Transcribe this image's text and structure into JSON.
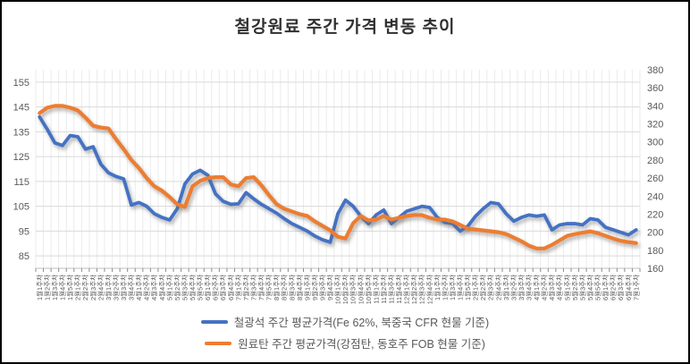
{
  "title": "철강원료 주간 가격 변동 추이",
  "legend": {
    "series1_label": "철광석 주간 평균가격(Fe 62%, 북중국 CFR 현물 기준)",
    "series2_label": "원료탄 주간 평균가격(강점탄, 동호주 FOB 현물 기준)"
  },
  "colors": {
    "iron_ore": "#4472C4",
    "coking_coal": "#ED7D31",
    "grid_major": "#D9D9D9",
    "grid_minor": "#EBEBEB",
    "axis_line": "#BFBFBF",
    "tick": "#8C8C8C",
    "label": "#595959"
  },
  "chart_data": {
    "type": "line",
    "title": "철강원료 주간 가격 변동 추이",
    "grid": true,
    "legend_position": "bottom",
    "categories": [
      "1월1주차",
      "1월2주차",
      "1월3주차",
      "1월4주차",
      "1월5주차",
      "2월1주차",
      "2월2주차",
      "2월3주차",
      "2월4주차",
      "3월1주차",
      "3월2주차",
      "3월3주차",
      "3월4주차",
      "4월1주차",
      "4월2주차",
      "4월3주차",
      "4월4주차",
      "5월1주차",
      "5월2주차",
      "5월3주차",
      "5월4주차",
      "5월5주차",
      "6월1주차",
      "6월2주차",
      "6월3주차",
      "6월4주차",
      "7월1주차",
      "7월2주차",
      "7월3주차",
      "7월4주차",
      "7월5주차",
      "8월1주차",
      "8월2주차",
      "8월3주차",
      "8월4주차",
      "9월1주차",
      "9월2주차",
      "9월3주차",
      "9월4주차",
      "10월1주차",
      "10월2주차",
      "10월3주차",
      "10월4주차",
      "10월5주차",
      "11월1주차",
      "11월2주차",
      "11월3주차",
      "11월4주차",
      "12월1주차",
      "12월2주차",
      "12월3주차",
      "12월4주차",
      "1월1주차",
      "1월2주차",
      "1월3주차",
      "1월4주차",
      "1월5주차",
      "2월1주차",
      "2월2주차",
      "2월3주차",
      "2월4주차",
      "3월1주차",
      "3월2주차",
      "3월3주차",
      "3월4주차",
      "4월1주차",
      "4월2주차",
      "4월3주차",
      "4월4주차",
      "5월1주차",
      "5월2주차",
      "5월3주차",
      "5월4주차",
      "5월5주차",
      "6월1주차",
      "6월2주차",
      "6월3주차",
      "6월4주차",
      "7월1주차"
    ],
    "series": [
      {
        "name": "철광석 주간 평균가격(Fe 62%, 북중국 CFR 현물 기준)",
        "axis": "left",
        "color": "#4472C4",
        "stroke_width": 3.8,
        "values": [
          141,
          136,
          130.5,
          129.5,
          133.5,
          133,
          128,
          129,
          122,
          118.5,
          117,
          116,
          105.5,
          106.5,
          105,
          102,
          100.5,
          99.5,
          104,
          114,
          118,
          119.5,
          117.5,
          110,
          107,
          105.8,
          106,
          110.5,
          108,
          105.8,
          104,
          102.2,
          100,
          98,
          96.5,
          95,
          93,
          91.5,
          90.5,
          102,
          107.5,
          105,
          101,
          98,
          101.5,
          103.5,
          98,
          100.5,
          103,
          104,
          105,
          104.5,
          100.5,
          98.5,
          98,
          95,
          97,
          101,
          104,
          106.5,
          106,
          102,
          99,
          100.5,
          101.5,
          101,
          101.5,
          95.5,
          97.5,
          98,
          98,
          97.5,
          100,
          99.5,
          96.5,
          95.5,
          94.5,
          93.5,
          95.5
        ]
      },
      {
        "name": "원료탄 주간 평균가격(강점탄, 동호주 FOB 현물 기준)",
        "axis": "right",
        "color": "#ED7D31",
        "stroke_width": 4.2,
        "values": [
          332,
          338,
          340,
          340,
          338,
          335,
          327,
          318,
          316,
          315,
          303,
          292,
          280,
          271,
          260,
          251,
          246,
          239,
          231,
          228,
          251,
          257,
          260,
          261,
          261,
          253,
          251,
          260,
          261,
          252,
          241,
          231,
          226,
          223,
          220,
          218,
          212,
          207,
          202,
          195,
          193,
          210,
          218,
          213,
          214,
          218,
          214,
          216,
          218,
          219,
          219,
          216,
          214,
          214,
          212,
          208,
          204,
          203,
          202,
          201,
          200,
          198,
          194,
          190,
          185,
          182,
          182,
          186,
          191,
          196,
          198,
          199.5,
          201,
          199,
          196,
          193,
          190.5,
          189,
          188
        ]
      }
    ],
    "left_axis": {
      "min": 80,
      "max": 160,
      "tick_step": 10,
      "ticks": [
        85,
        95,
        105,
        115,
        125,
        135,
        145,
        155
      ]
    },
    "right_axis": {
      "min": 160,
      "max": 380,
      "tick_step": 20,
      "ticks": [
        160,
        180,
        200,
        220,
        240,
        260,
        280,
        300,
        320,
        340,
        360,
        380
      ]
    }
  }
}
